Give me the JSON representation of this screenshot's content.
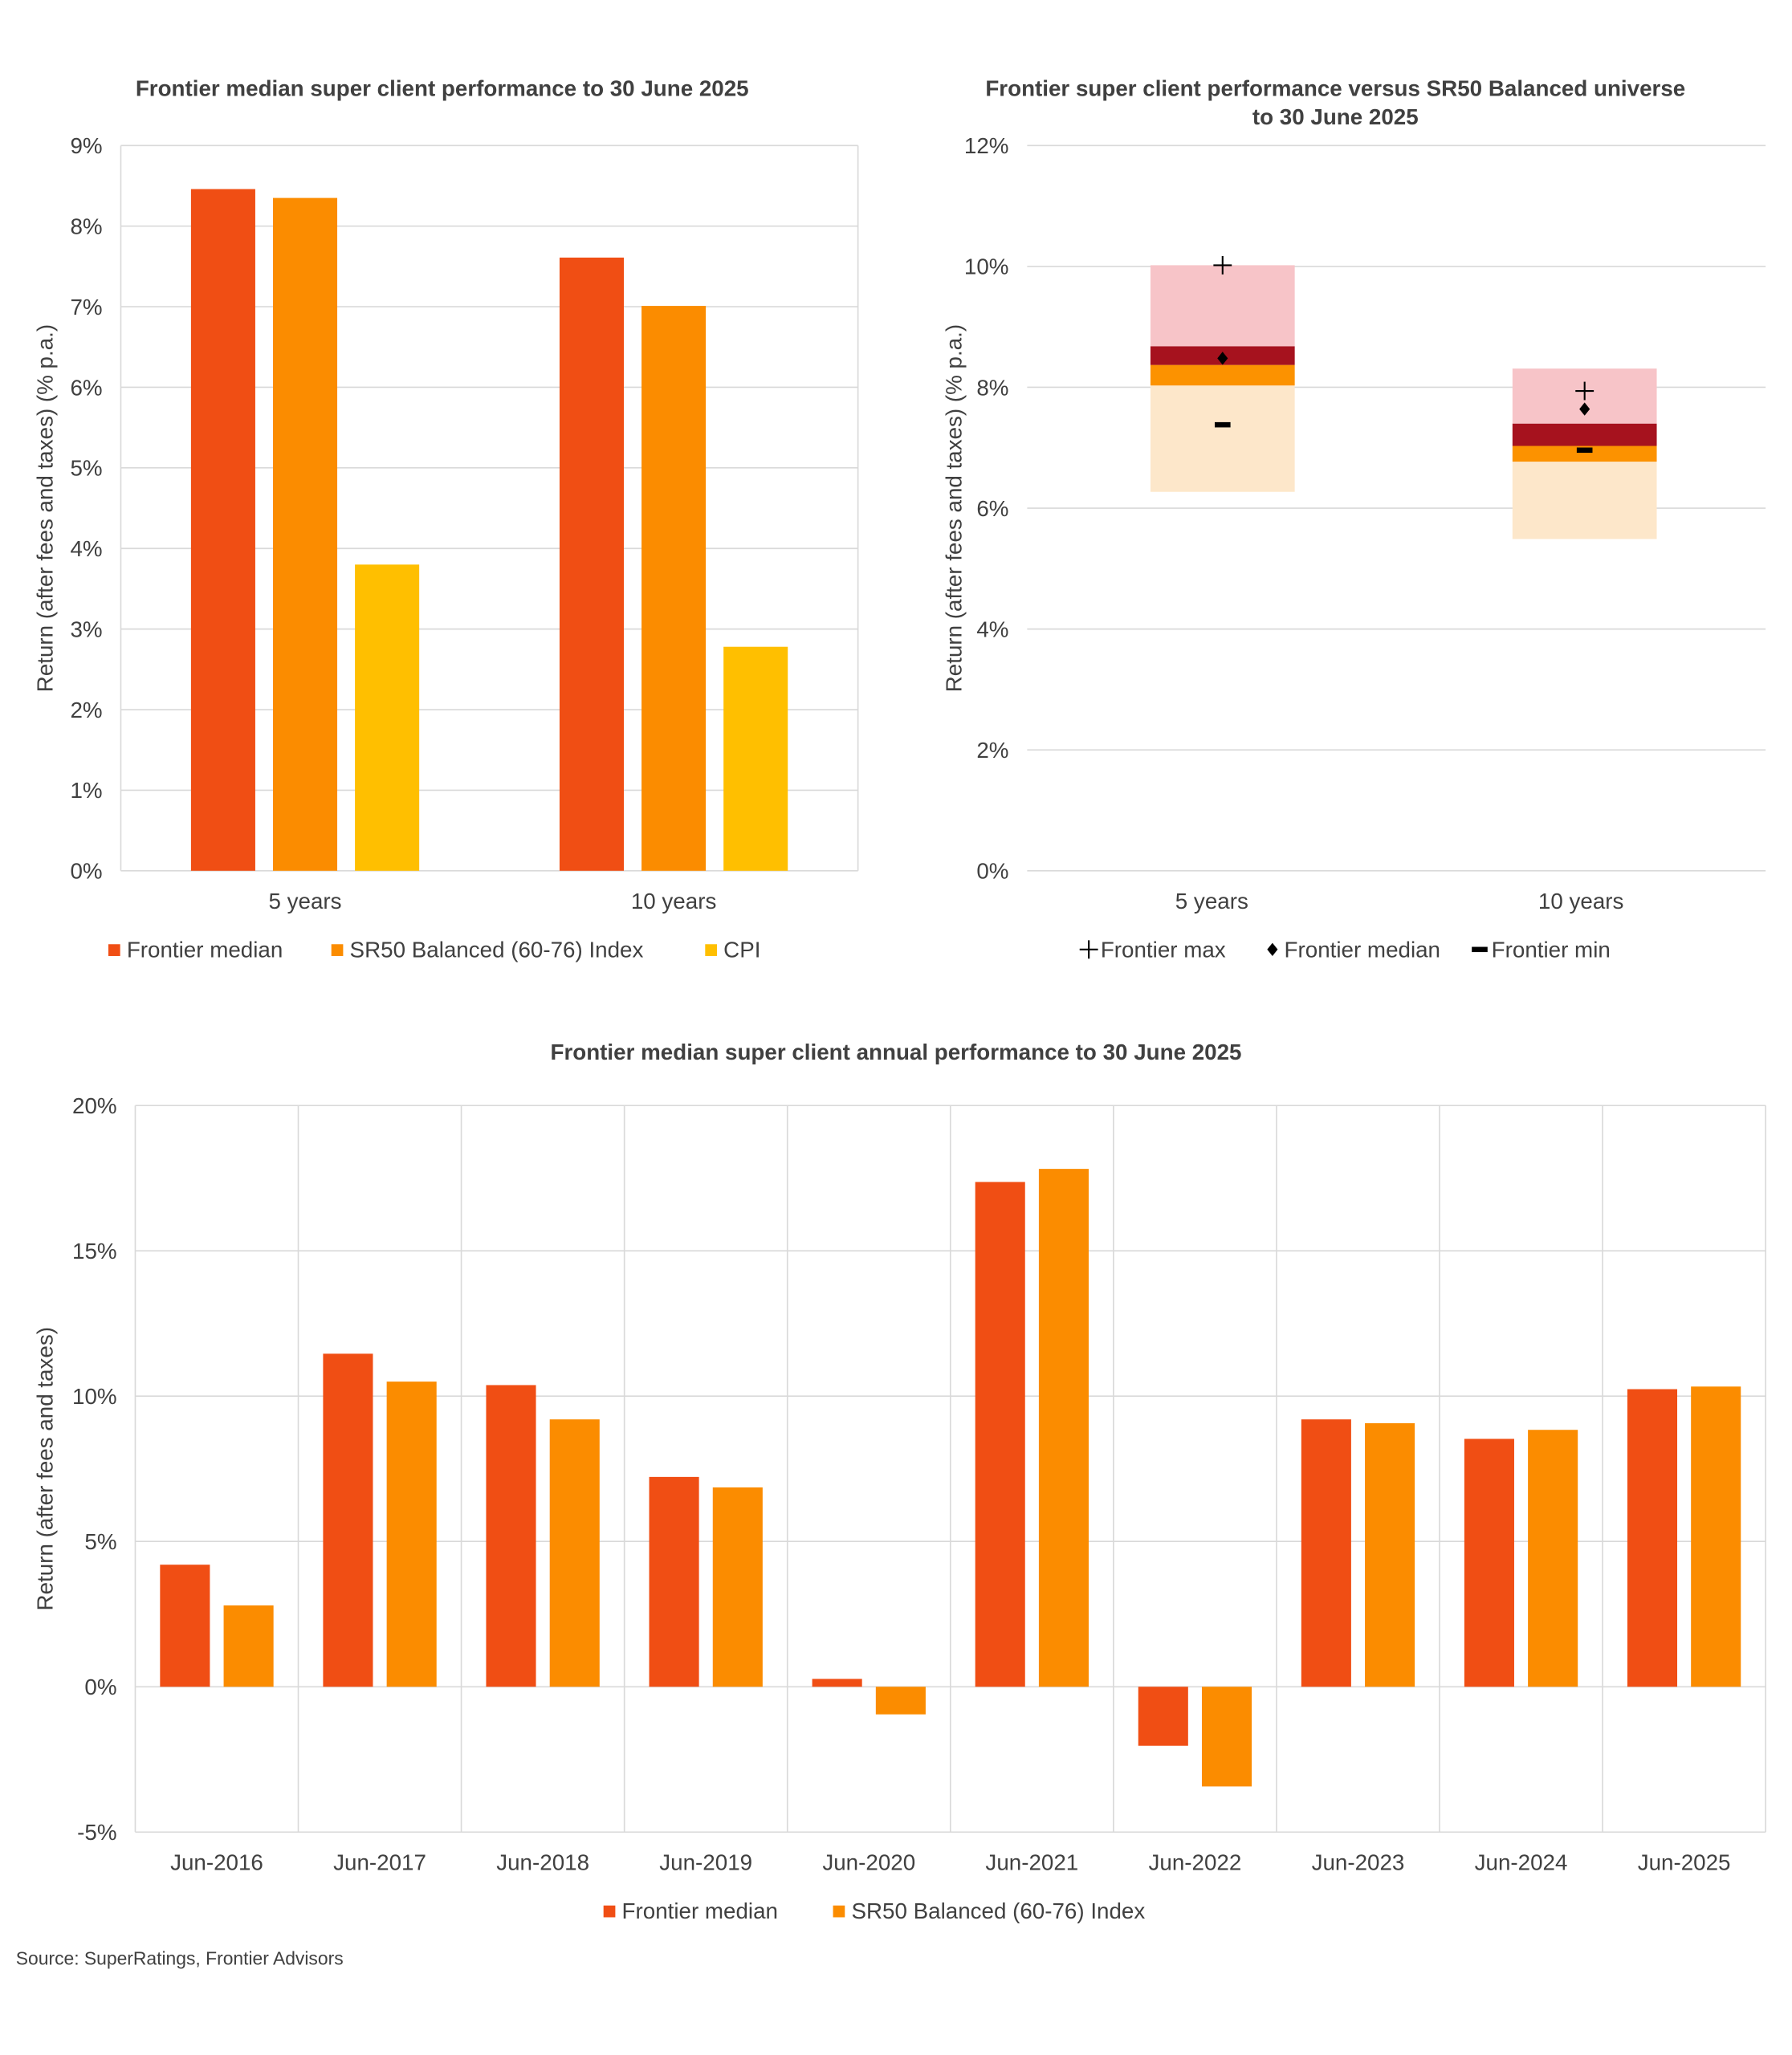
{
  "source": "Source: SuperRatings, Frontier Advisors",
  "colors": {
    "frontier_median": "#F04E14",
    "sr50": "#FB8C00",
    "cpi": "#FFBF00",
    "band_top": "#F7C4C8",
    "band_upper": "#A6121E",
    "band_lower": "#FC9200",
    "band_bottom": "#FDE7CA",
    "marker": "#000000"
  },
  "chart_data": [
    {
      "type": "bar",
      "title": "Frontier median super client performance to 30 June 2025",
      "ylabel": "Return (after fees and taxes) (% p.a.)",
      "ylim": [
        0,
        9
      ],
      "yticks": [
        "0%",
        "1%",
        "2%",
        "3%",
        "4%",
        "5%",
        "6%",
        "7%",
        "8%",
        "9%"
      ],
      "categories": [
        "5 years",
        "10 years"
      ],
      "grid": true,
      "legend_position": "bottom",
      "series": [
        {
          "name": "Frontier median",
          "color": "#F04E14",
          "values": [
            8.46,
            7.61
          ]
        },
        {
          "name": "SR50 Balanced (60-76) Index",
          "color": "#FB8C00",
          "values": [
            8.35,
            7.01
          ]
        },
        {
          "name": "CPI",
          "color": "#FFBF00",
          "values": [
            3.8,
            2.78
          ]
        }
      ]
    },
    {
      "type": "bar",
      "title_lines": [
        "Frontier super client performance versus SR50 Balanced universe",
        "to 30 June 2025"
      ],
      "ylabel": "Return (after fees and taxes) (% p.a.)",
      "ylim": [
        0,
        12
      ],
      "yticks": [
        "0%",
        "2%",
        "4%",
        "6%",
        "8%",
        "10%",
        "12%"
      ],
      "categories": [
        "5 years",
        "10 years"
      ],
      "grid": true,
      "legend_position": "bottom",
      "bands": [
        {
          "color": "#FDE7CA",
          "ranges": [
            [
              6.27,
              8.03
            ],
            [
              5.49,
              6.77
            ]
          ]
        },
        {
          "color": "#FC9200",
          "ranges": [
            [
              8.03,
              8.37
            ],
            [
              6.77,
              7.03
            ]
          ]
        },
        {
          "color": "#A6121E",
          "ranges": [
            [
              8.37,
              8.68
            ],
            [
              7.03,
              7.4
            ]
          ]
        },
        {
          "color": "#F7C4C8",
          "ranges": [
            [
              8.68,
              10.02
            ],
            [
              7.4,
              8.31
            ]
          ]
        }
      ],
      "markers": [
        {
          "name": "Frontier max",
          "symbol": "plus",
          "values": [
            10.02,
            7.94
          ]
        },
        {
          "name": "Frontier median",
          "symbol": "diamond",
          "values": [
            8.48,
            7.64
          ]
        },
        {
          "name": "Frontier min",
          "symbol": "dash",
          "values": [
            7.38,
            6.96
          ]
        }
      ]
    },
    {
      "type": "bar",
      "title": "Frontier median super client annual performance to 30 June 2025",
      "ylabel": "Return (after fees and taxes)",
      "ylim": [
        -5,
        20
      ],
      "yticks": [
        "-5%",
        "0%",
        "5%",
        "10%",
        "15%",
        "20%"
      ],
      "categories": [
        "Jun-2016",
        "Jun-2017",
        "Jun-2018",
        "Jun-2019",
        "Jun-2020",
        "Jun-2021",
        "Jun-2022",
        "Jun-2023",
        "Jun-2024",
        "Jun-2025"
      ],
      "grid": true,
      "legend_position": "bottom",
      "series": [
        {
          "name": "Frontier median",
          "color": "#F04E14",
          "values": [
            4.2,
            11.46,
            10.38,
            7.22,
            0.27,
            17.37,
            -2.03,
            9.2,
            8.53,
            10.24
          ]
        },
        {
          "name": "SR50 Balanced (60-76) Index",
          "color": "#FB8C00",
          "values": [
            2.8,
            10.5,
            9.2,
            6.86,
            -0.95,
            17.82,
            -3.43,
            9.07,
            8.84,
            10.33
          ]
        }
      ]
    }
  ]
}
